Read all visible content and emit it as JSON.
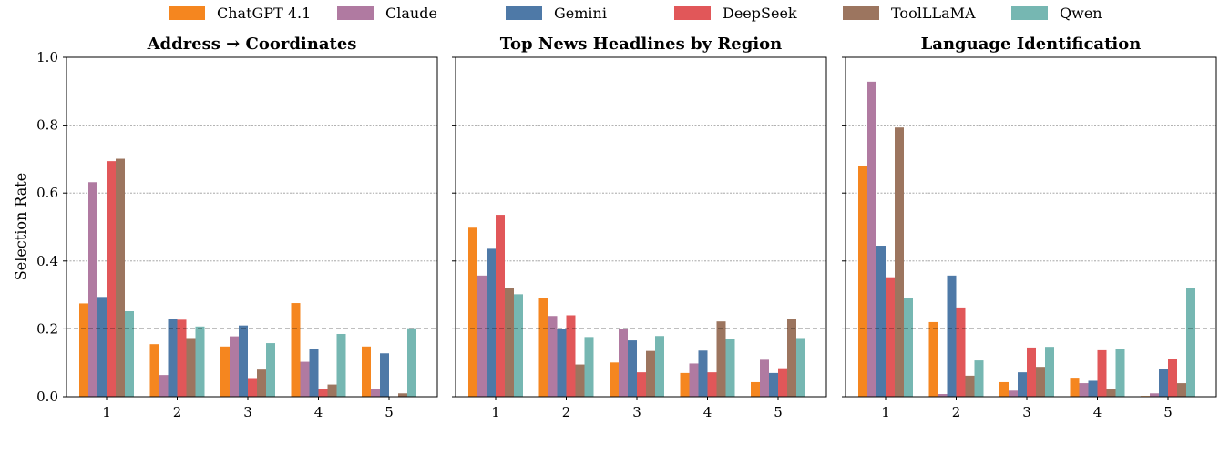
{
  "chart_data": {
    "type": "bar",
    "ylabel": "Selection Rate",
    "ylim": [
      0,
      1.0
    ],
    "yticks": [
      "0.0",
      "0.2",
      "0.4",
      "0.6",
      "0.8",
      "1.0"
    ],
    "grid": "horizontal dotted",
    "reference_line": 0.2,
    "legend": {
      "placement": "top-center",
      "entries": [
        {
          "name": "ChatGPT 4.1",
          "color": "#f5861f"
        },
        {
          "name": "Claude",
          "color": "#b07aa1"
        },
        {
          "name": "Gemini",
          "color": "#4e79a7"
        },
        {
          "name": "DeepSeek",
          "color": "#e15759"
        },
        {
          "name": "ToolLLaMA",
          "color": "#9c755f"
        },
        {
          "name": "Qwen",
          "color": "#76b7b2"
        }
      ]
    },
    "panels": [
      {
        "title": "Address → Coordinates",
        "categories": [
          "1",
          "2",
          "3",
          "4",
          "5"
        ],
        "series": [
          {
            "name": "ChatGPT 4.1",
            "values": [
              0.275,
              0.155,
              0.148,
              0.276,
              0.148
            ]
          },
          {
            "name": "Claude",
            "values": [
              0.632,
              0.064,
              0.178,
              0.103,
              0.023
            ]
          },
          {
            "name": "Gemini",
            "values": [
              0.294,
              0.23,
              0.21,
              0.141,
              0.128
            ]
          },
          {
            "name": "DeepSeek",
            "values": [
              0.694,
              0.227,
              0.055,
              0.022,
              0.0
            ]
          },
          {
            "name": "ToolLLaMA",
            "values": [
              0.701,
              0.173,
              0.08,
              0.036,
              0.01
            ]
          },
          {
            "name": "Qwen",
            "values": [
              0.252,
              0.207,
              0.158,
              0.185,
              0.202
            ]
          }
        ]
      },
      {
        "title": "Top News Headlines by Region",
        "categories": [
          "1",
          "2",
          "3",
          "4",
          "5"
        ],
        "series": [
          {
            "name": "ChatGPT 4.1",
            "values": [
              0.498,
              0.292,
              0.101,
              0.07,
              0.043
            ]
          },
          {
            "name": "Claude",
            "values": [
              0.357,
              0.238,
              0.2,
              0.098,
              0.109
            ]
          },
          {
            "name": "Gemini",
            "values": [
              0.436,
              0.2,
              0.166,
              0.136,
              0.07
            ]
          },
          {
            "name": "DeepSeek",
            "values": [
              0.536,
              0.24,
              0.072,
              0.072,
              0.084
            ]
          },
          {
            "name": "ToolLLaMA",
            "values": [
              0.321,
              0.095,
              0.135,
              0.222,
              0.23
            ]
          },
          {
            "name": "Qwen",
            "values": [
              0.302,
              0.176,
              0.179,
              0.17,
              0.173
            ]
          }
        ]
      },
      {
        "title": "Language Identification",
        "categories": [
          "1",
          "2",
          "3",
          "4",
          "5"
        ],
        "series": [
          {
            "name": "ChatGPT 4.1",
            "values": [
              0.681,
              0.22,
              0.043,
              0.056,
              0.002
            ]
          },
          {
            "name": "Claude",
            "values": [
              0.928,
              0.008,
              0.018,
              0.04,
              0.01
            ]
          },
          {
            "name": "Gemini",
            "values": [
              0.445,
              0.357,
              0.072,
              0.047,
              0.083
            ]
          },
          {
            "name": "DeepSeek",
            "values": [
              0.352,
              0.263,
              0.145,
              0.137,
              0.11
            ]
          },
          {
            "name": "ToolLLaMA",
            "values": [
              0.793,
              0.062,
              0.088,
              0.023,
              0.04
            ]
          },
          {
            "name": "Qwen",
            "values": [
              0.292,
              0.107,
              0.147,
              0.14,
              0.321
            ]
          }
        ]
      }
    ]
  }
}
